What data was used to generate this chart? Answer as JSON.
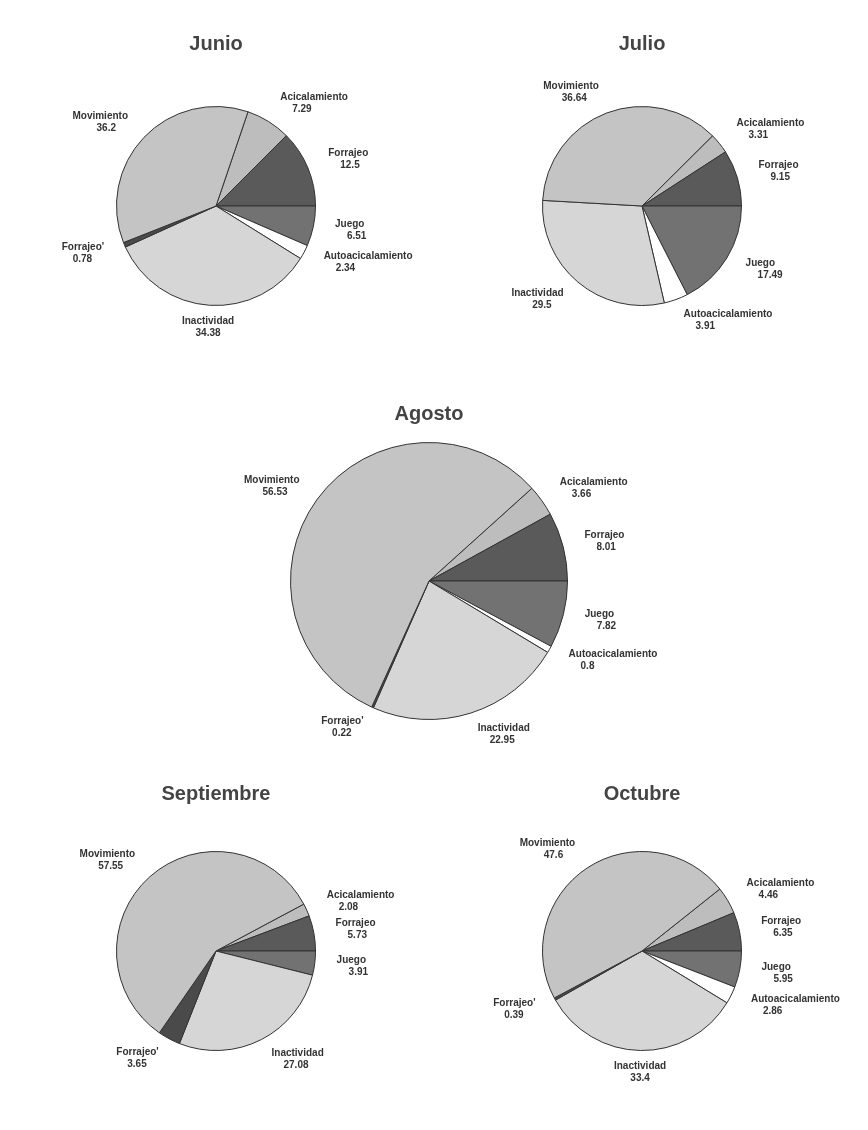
{
  "chart_data": [
    {
      "type": "pie",
      "title": "Junio",
      "categories": [
        "Acicalamiento",
        "Forrajeo",
        "Juego",
        "Autoacicalamiento",
        "Inactividad",
        "Forrajeo'",
        "Movimiento"
      ],
      "values": [
        7.29,
        12.5,
        6.51,
        2.34,
        34.38,
        0.78,
        36.2
      ],
      "colors": [
        "#bdbdbd",
        "#5a5a5a",
        "#727272",
        "#ffffff",
        "#d6d6d6",
        "#4a4a4a",
        "#c4c4c4"
      ],
      "data_labels": true
    },
    {
      "type": "pie",
      "title": "Julio",
      "categories": [
        "Acicalamiento",
        "Forrajeo",
        "Juego",
        "Autoacicalamiento",
        "Inactividad",
        "Movimiento"
      ],
      "values": [
        3.31,
        9.15,
        17.49,
        3.91,
        29.5,
        36.64
      ],
      "colors": [
        "#bdbdbd",
        "#5a5a5a",
        "#727272",
        "#ffffff",
        "#d6d6d6",
        "#c4c4c4"
      ],
      "data_labels": true
    },
    {
      "type": "pie",
      "title": "Agosto",
      "categories": [
        "Acicalamiento",
        "Forrajeo",
        "Juego",
        "Autoacicalamiento",
        "Inactividad",
        "Forrajeo'",
        "Movimiento"
      ],
      "values": [
        3.66,
        8.01,
        7.82,
        0.8,
        22.95,
        0.22,
        56.53
      ],
      "colors": [
        "#bdbdbd",
        "#5a5a5a",
        "#727272",
        "#ffffff",
        "#d6d6d6",
        "#4a4a4a",
        "#c4c4c4"
      ],
      "data_labels": true
    },
    {
      "type": "pie",
      "title": "Septiembre",
      "categories": [
        "Acicalamiento",
        "Forrajeo",
        "Juego",
        "Inactividad",
        "Forrajeo'",
        "Movimiento"
      ],
      "values": [
        2.08,
        5.73,
        3.91,
        27.08,
        3.65,
        57.55
      ],
      "colors": [
        "#bdbdbd",
        "#5a5a5a",
        "#727272",
        "#d6d6d6",
        "#4a4a4a",
        "#c4c4c4"
      ],
      "data_labels": true
    },
    {
      "type": "pie",
      "title": "Octubre",
      "categories": [
        "Acicalamiento",
        "Forrajeo",
        "Juego",
        "Autoacicalamiento",
        "Inactividad",
        "Forrajeo'",
        "Movimiento"
      ],
      "values": [
        4.46,
        6.35,
        5.95,
        2.86,
        33.4,
        0.39,
        47.6
      ],
      "colors": [
        "#bdbdbd",
        "#5a5a5a",
        "#727272",
        "#ffffff",
        "#d6d6d6",
        "#4a4a4a",
        "#c4c4c4"
      ],
      "data_labels": true
    }
  ]
}
